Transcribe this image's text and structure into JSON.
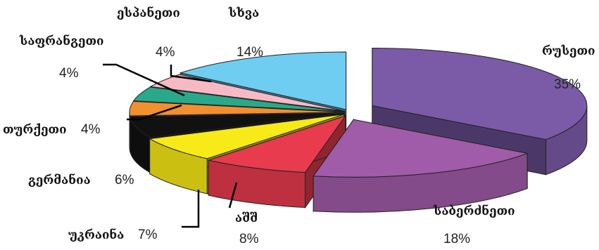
{
  "chart_data": {
    "type": "pie",
    "style": "3d-exploded",
    "title": "",
    "slices": [
      {
        "label": "რუსეთი",
        "value": 35,
        "value_label": "35%",
        "color": "#7b5aa8"
      },
      {
        "label": "საბერძნეთი",
        "value": 18,
        "value_label": "18%",
        "color": "#a05ca8"
      },
      {
        "label": "აშშ",
        "value": 8,
        "value_label": "8%",
        "color": "#e83b4e"
      },
      {
        "label": "უკრაინა",
        "value": 7,
        "value_label": "7%",
        "color": "#f7ea16"
      },
      {
        "label": "გერმანია",
        "value": 6,
        "value_label": "6%",
        "color": "#111111"
      },
      {
        "label": "თურქეთი",
        "value": 4,
        "value_label": "4%",
        "color": "#f28f2f"
      },
      {
        "label": "საფრანგეთი",
        "value": 4,
        "value_label": "4%",
        "color": "#2aa88a"
      },
      {
        "label": "ესპანეთი",
        "value": 4,
        "value_label": "4%",
        "color": "#f7b9c4"
      },
      {
        "label": "სხვა",
        "value": 14,
        "value_label": "14%",
        "color": "#6fcdf2"
      }
    ]
  }
}
